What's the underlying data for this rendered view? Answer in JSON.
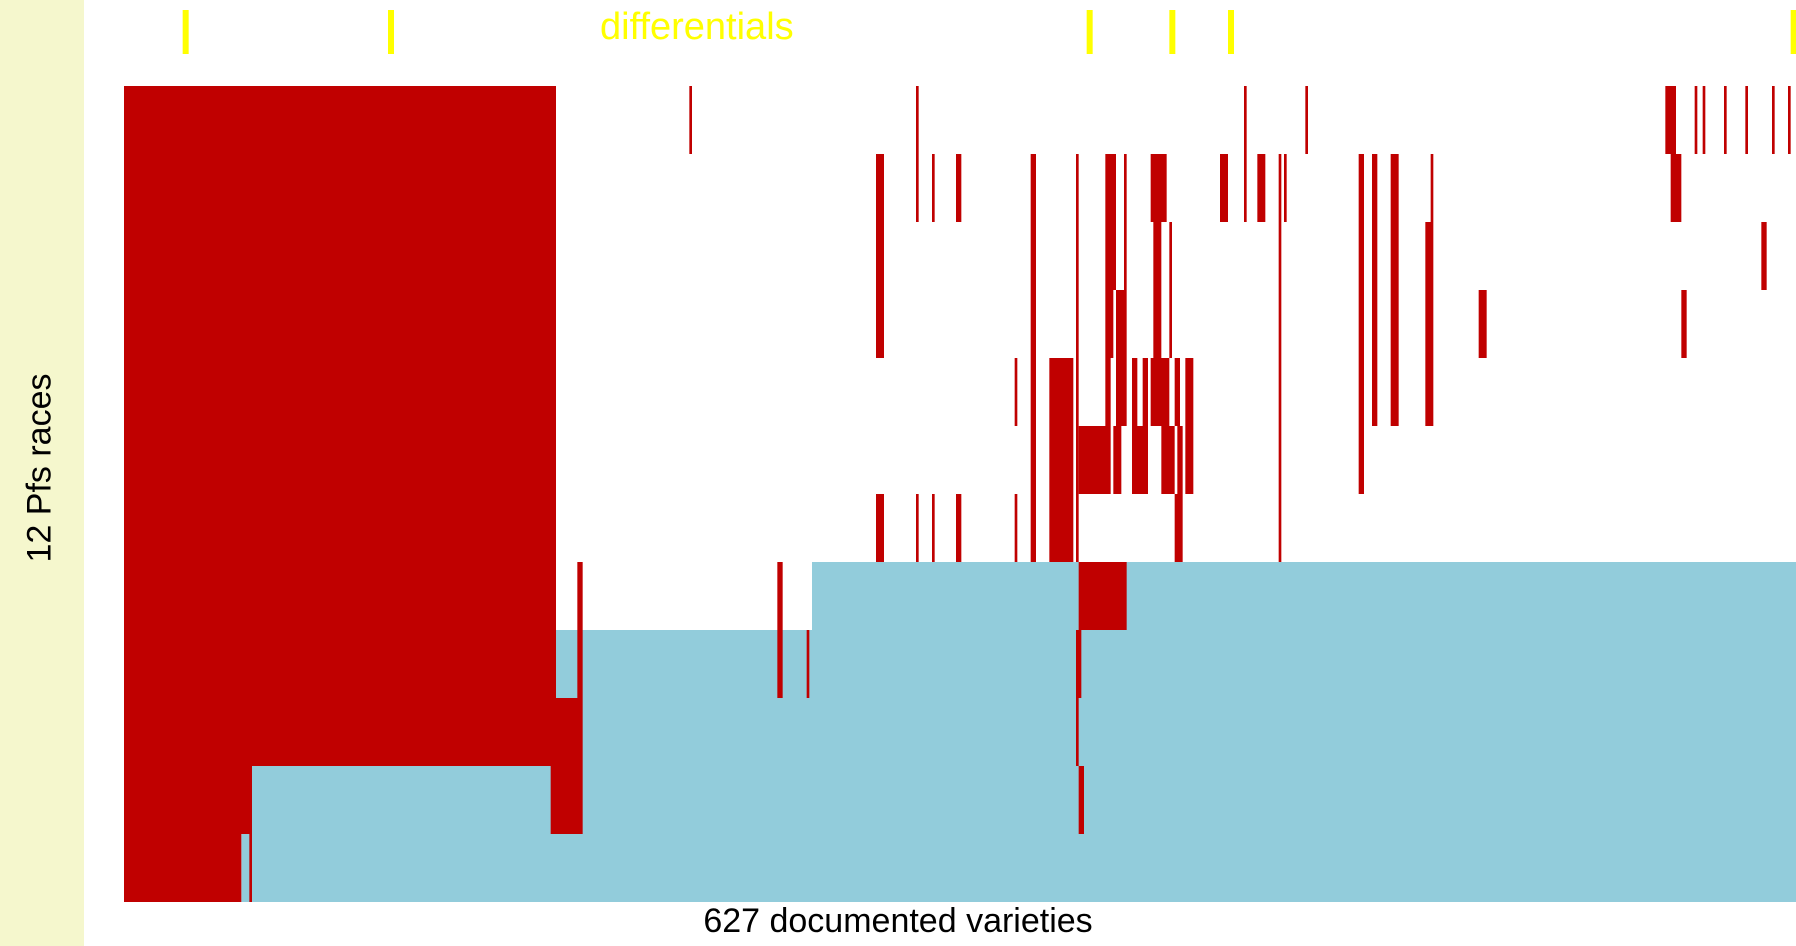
{
  "chart_data": {
    "type": "heatmap",
    "title": "",
    "xlabel": "627 documented varieties",
    "ylabel": "12 Pfs races",
    "annotation": "differentials",
    "n_varieties": 627,
    "n_races": 12,
    "colors": {
      "background": "#f5f7cd",
      "plot": "#ffffff",
      "resistant": "#c00000",
      "susceptible": "#92ccdb",
      "marker": "#ffff00"
    },
    "differential_columns": [
      22,
      99,
      361,
      392,
      414,
      625
    ],
    "block_rows": [
      {
        "race": 1,
        "resistant": [
          [
            0,
            162
          ],
          [
            212,
            213
          ],
          [
            297,
            298
          ],
          [
            420,
            421
          ],
          [
            443,
            444
          ],
          [
            578,
            582
          ],
          [
            589,
            590
          ],
          [
            592,
            593
          ],
          [
            600,
            601
          ],
          [
            608,
            609
          ],
          [
            618,
            619
          ],
          [
            624,
            625
          ]
        ]
      },
      {
        "race": 2,
        "resistant": [
          [
            0,
            162
          ],
          [
            282,
            285
          ],
          [
            297,
            298
          ],
          [
            303,
            304
          ],
          [
            312,
            314
          ],
          [
            340,
            342
          ],
          [
            357,
            358
          ],
          [
            368,
            372
          ],
          [
            375,
            376
          ],
          [
            385,
            391
          ],
          [
            411,
            414
          ],
          [
            420,
            421
          ],
          [
            425,
            428
          ],
          [
            433,
            434
          ],
          [
            435,
            436
          ],
          [
            463,
            465
          ],
          [
            468,
            470
          ],
          [
            475,
            478
          ],
          [
            490,
            491
          ],
          [
            580,
            584
          ]
        ]
      },
      {
        "race": 3,
        "resistant": [
          [
            0,
            162
          ],
          [
            282,
            285
          ],
          [
            340,
            342
          ],
          [
            357,
            358
          ],
          [
            368,
            372
          ],
          [
            375,
            376
          ],
          [
            386,
            389
          ],
          [
            392,
            393
          ],
          [
            433,
            434
          ],
          [
            463,
            465
          ],
          [
            468,
            470
          ],
          [
            475,
            478
          ],
          [
            488,
            491
          ],
          [
            614,
            616
          ]
        ]
      },
      {
        "race": 4,
        "resistant": [
          [
            0,
            162
          ],
          [
            282,
            285
          ],
          [
            340,
            342
          ],
          [
            357,
            358
          ],
          [
            368,
            371
          ],
          [
            372,
            376
          ],
          [
            386,
            389
          ],
          [
            392,
            393
          ],
          [
            433,
            434
          ],
          [
            463,
            465
          ],
          [
            468,
            470
          ],
          [
            475,
            478
          ],
          [
            488,
            491
          ],
          [
            508,
            511
          ],
          [
            584,
            586
          ]
        ]
      },
      {
        "race": 5,
        "resistant": [
          [
            0,
            162
          ],
          [
            334,
            335
          ],
          [
            340,
            342
          ],
          [
            347,
            356
          ],
          [
            357,
            358
          ],
          [
            368,
            370
          ],
          [
            372,
            376
          ],
          [
            378,
            380
          ],
          [
            382,
            384
          ],
          [
            385,
            392
          ],
          [
            394,
            396
          ],
          [
            398,
            401
          ],
          [
            433,
            434
          ],
          [
            463,
            465
          ],
          [
            468,
            470
          ],
          [
            475,
            478
          ],
          [
            488,
            491
          ]
        ]
      },
      {
        "race": 6,
        "resistant": [
          [
            0,
            162
          ],
          [
            340,
            342
          ],
          [
            347,
            356
          ],
          [
            357,
            358
          ],
          [
            358,
            370
          ],
          [
            371,
            374
          ],
          [
            378,
            384
          ],
          [
            389,
            394
          ],
          [
            395,
            397
          ],
          [
            398,
            401
          ],
          [
            433,
            434
          ],
          [
            463,
            465
          ]
        ]
      },
      {
        "race": 7,
        "resistant": [
          [
            0,
            162
          ],
          [
            282,
            285
          ],
          [
            297,
            298
          ],
          [
            303,
            304
          ],
          [
            312,
            314
          ],
          [
            334,
            335
          ],
          [
            340,
            342
          ],
          [
            347,
            356
          ],
          [
            357,
            358
          ],
          [
            394,
            397
          ],
          [
            433,
            434
          ]
        ]
      },
      {
        "race": 8,
        "resistant": [
          [
            0,
            162
          ],
          [
            170,
            172
          ],
          [
            245,
            247
          ],
          [
            358,
            376
          ]
        ]
      },
      {
        "race": 9,
        "resistant": [
          [
            0,
            162
          ],
          [
            170,
            172
          ],
          [
            245,
            247
          ],
          [
            256,
            257
          ],
          [
            357,
            359
          ]
        ]
      },
      {
        "race": 10,
        "resistant": [
          [
            0,
            162
          ],
          [
            160,
            172
          ],
          [
            357,
            358
          ]
        ]
      },
      {
        "race": 11,
        "resistant": [
          [
            0,
            48
          ],
          [
            160,
            172
          ],
          [
            358,
            360
          ]
        ]
      },
      {
        "race": 12,
        "resistant": [
          [
            0,
            44
          ],
          [
            47,
            48
          ]
        ]
      }
    ],
    "susceptible_start": [
      628,
      628,
      628,
      628,
      628,
      628,
      628,
      258,
      162,
      160,
      48,
      44
    ]
  }
}
